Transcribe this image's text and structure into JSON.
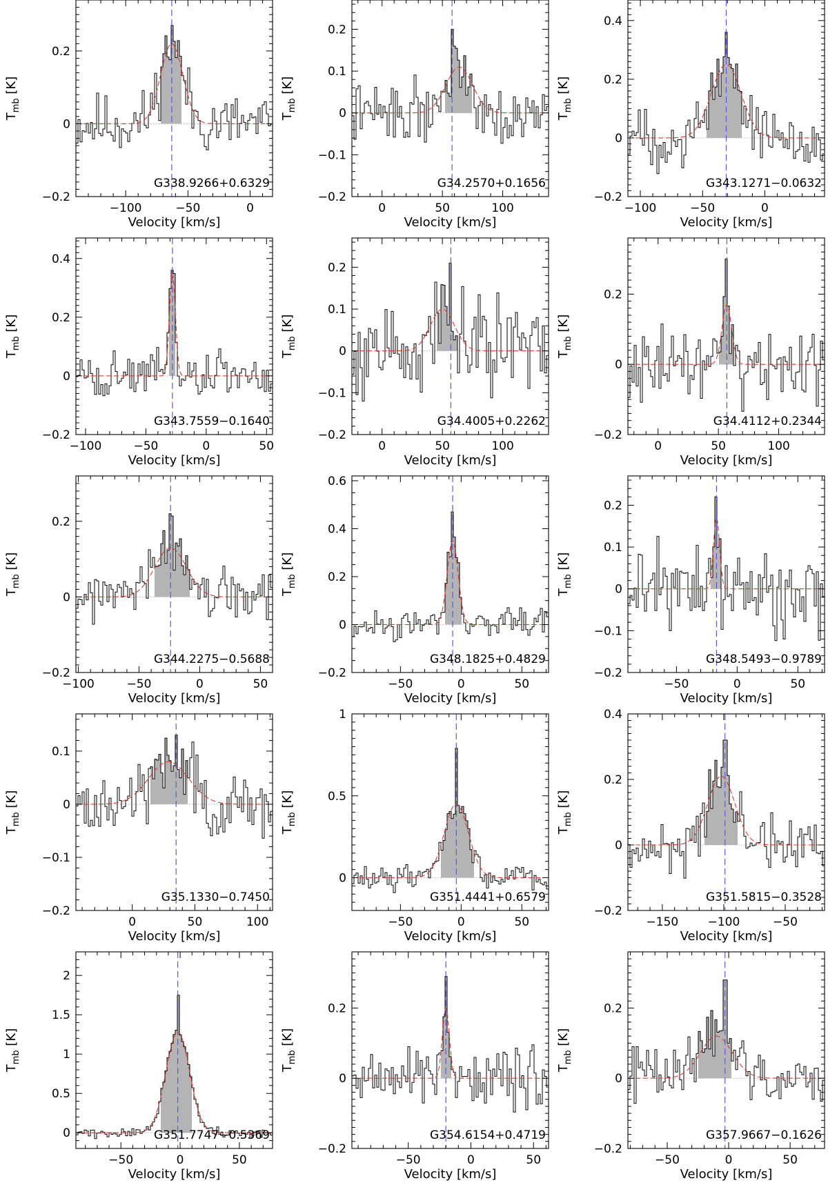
{
  "chart_data": [
    {
      "type": "line",
      "source": "G338.9266+0.6329",
      "xlim": [
        -140,
        18
      ],
      "ylim": [
        -0.2,
        0.34
      ],
      "xticks": [
        -100,
        -50,
        0
      ],
      "yticks": [
        -0.2,
        0,
        0.2
      ],
      "ytick_labels": [
        "−0.2",
        "0",
        "0.2"
      ],
      "xlabel": "Velocity [km/s]",
      "ylabel": "T_mb [K]",
      "vlsr": -63,
      "fit": {
        "peak": 0.22,
        "center": -63,
        "width": 9
      },
      "peak": 0.27,
      "fill_range": [
        -72,
        -56
      ],
      "noise": 0.06,
      "seed": 11
    },
    {
      "type": "line",
      "source": "G34.2570+0.1656",
      "xlim": [
        -25,
        138
      ],
      "ylim": [
        -0.2,
        0.27
      ],
      "xticks": [
        0,
        50,
        100
      ],
      "yticks": [
        -0.2,
        -0.1,
        0,
        0.1,
        0.2
      ],
      "ytick_labels": [
        "−0.2",
        "−0.1",
        "0",
        "0.1",
        "0.2"
      ],
      "xlabel": "Velocity [km/s]",
      "ylabel": "T_mb [K]",
      "vlsr": 58,
      "fit": {
        "peak": 0.11,
        "center": 64,
        "width": 11
      },
      "peak": 0.2,
      "fill_range": [
        53,
        75
      ],
      "noise": 0.05,
      "seed": 22
    },
    {
      "type": "line",
      "source": "G343.1271−0.0632",
      "xlim": [
        -110,
        48
      ],
      "ylim": [
        -0.2,
        0.47
      ],
      "xticks": [
        -100,
        -50,
        0
      ],
      "yticks": [
        -0.2,
        0,
        0.2,
        0.4
      ],
      "ytick_labels": [
        "−0.2",
        "0",
        "0.2",
        "0.4"
      ],
      "xlabel": "Velocity [km/s]",
      "ylabel": "T_mb [K]",
      "vlsr": -31,
      "fit": {
        "peak": 0.25,
        "center": -31,
        "width": 12
      },
      "peak": 0.36,
      "fill_range": [
        -47,
        -18
      ],
      "noise": 0.07,
      "seed": 33
    },
    {
      "type": "line",
      "source": "G343.7559−0.1640",
      "xlim": [
        -108,
        55
      ],
      "ylim": [
        -0.2,
        0.47
      ],
      "xticks": [
        -100,
        -50,
        0,
        50
      ],
      "yticks": [
        -0.2,
        0,
        0.2,
        0.4
      ],
      "ytick_labels": [
        "−0.2",
        "0",
        "0.2",
        "0.4"
      ],
      "xlabel": "Velocity [km/s]",
      "ylabel": "T_mb [K]",
      "vlsr": -28,
      "fit": {
        "peak": 0.35,
        "center": -28,
        "width": 2.5
      },
      "peak": 0.36,
      "fill_range": [
        -31,
        -25
      ],
      "noise": 0.06,
      "seed": 44
    },
    {
      "type": "line",
      "source": "G34.4005+0.2262",
      "xlim": [
        -25,
        138
      ],
      "ylim": [
        -0.2,
        0.27
      ],
      "xticks": [
        0,
        50,
        100
      ],
      "yticks": [
        -0.2,
        -0.1,
        0,
        0.1,
        0.2
      ],
      "ytick_labels": [
        "−0.2",
        "−0.1",
        "0",
        "0.1",
        "0.2"
      ],
      "xlabel": "Velocity [km/s]",
      "ylabel": "T_mb [K]",
      "vlsr": 57,
      "fit": {
        "peak": 0.1,
        "center": 50,
        "width": 10
      },
      "peak": 0.21,
      "fill_range": [
        45,
        65
      ],
      "noise": 0.08,
      "seed": 55
    },
    {
      "type": "line",
      "source": "G34.4112+0.2344",
      "xlim": [
        -25,
        138
      ],
      "ylim": [
        -0.2,
        0.36
      ],
      "xticks": [
        0,
        50,
        100
      ],
      "yticks": [
        -0.2,
        0,
        0.2
      ],
      "ytick_labels": [
        "−0.2",
        "0",
        "0.2"
      ],
      "xlabel": "Velocity [km/s]",
      "ylabel": "T_mb [K]",
      "vlsr": 57,
      "fit": {
        "peak": 0.17,
        "center": 57,
        "width": 4
      },
      "peak": 0.3,
      "fill_range": [
        51,
        64
      ],
      "noise": 0.07,
      "seed": 66
    },
    {
      "type": "line",
      "source": "G344.2275−0.5688",
      "xlim": [
        -102,
        60
      ],
      "ylim": [
        -0.2,
        0.32
      ],
      "xticks": [
        -100,
        -50,
        0,
        50
      ],
      "yticks": [
        -0.2,
        0,
        0.2
      ],
      "ytick_labels": [
        "−0.2",
        "0",
        "0.2"
      ],
      "xlabel": "Velocity [km/s]",
      "ylabel": "T_mb [K]",
      "vlsr": -24,
      "fit": {
        "peak": 0.13,
        "center": -24,
        "width": 13
      },
      "peak": 0.22,
      "fill_range": [
        -38,
        -8
      ],
      "noise": 0.05,
      "seed": 77
    },
    {
      "type": "line",
      "source": "G348.1825+0.4829",
      "xlim": [
        -90,
        72
      ],
      "ylim": [
        -0.2,
        0.62
      ],
      "xticks": [
        -50,
        0,
        50
      ],
      "yticks": [
        -0.2,
        0,
        0.2,
        0.4,
        0.6
      ],
      "ytick_labels": [
        "−0.2",
        "0",
        "0.2",
        "0.4",
        "0.6"
      ],
      "xlabel": "Velocity [km/s]",
      "ylabel": "T_mb [K]",
      "vlsr": -7,
      "fit": {
        "peak": 0.35,
        "center": -7,
        "width": 4.5
      },
      "peak": 0.47,
      "fill_range": [
        -14,
        0
      ],
      "noise": 0.04,
      "seed": 88
    },
    {
      "type": "line",
      "source": "G348.5493−0.9789",
      "xlim": [
        -90,
        72
      ],
      "ylim": [
        -0.2,
        0.27
      ],
      "xticks": [
        -50,
        0,
        50
      ],
      "yticks": [
        -0.2,
        -0.1,
        0,
        0.1,
        0.2
      ],
      "ytick_labels": [
        "−0.2",
        "−0.1",
        "0",
        "0.1",
        "0.2"
      ],
      "xlabel": "Velocity [km/s]",
      "ylabel": "T_mb [K]",
      "vlsr": -17,
      "fit": {
        "peak": 0.17,
        "center": -17,
        "width": 2.5
      },
      "peak": 0.22,
      "fill_range": [
        -21,
        -12
      ],
      "noise": 0.07,
      "seed": 99
    },
    {
      "type": "line",
      "source": "G35.1330−0.7450",
      "xlim": [
        -45,
        112
      ],
      "ylim": [
        -0.2,
        0.17
      ],
      "xticks": [
        0,
        50,
        100
      ],
      "yticks": [
        -0.2,
        -0.1,
        0,
        0.1
      ],
      "ytick_labels": [
        "−0.2",
        "−0.1",
        "0",
        "0.1"
      ],
      "xlabel": "Velocity [km/s]",
      "ylabel": "T_mb [K]",
      "vlsr": 35,
      "fit": {
        "peak": 0.08,
        "center": 29,
        "width": 16
      },
      "peak": 0.13,
      "fill_range": [
        15,
        45
      ],
      "noise": 0.045,
      "seed": 111
    },
    {
      "type": "line",
      "source": "G351.4441+0.6579",
      "xlim": [
        -90,
        72
      ],
      "ylim": [
        -0.2,
        1.0
      ],
      "xticks": [
        -50,
        0,
        50
      ],
      "yticks": [
        0,
        0.5,
        1
      ],
      "ytick_labels": [
        "0",
        "0.5",
        "1"
      ],
      "xlabel": "Velocity [km/s]",
      "ylabel": "T_mb [K]",
      "vlsr": -4,
      "fit": {
        "peak": 0.45,
        "center": -4,
        "width": 10
      },
      "peak": 0.79,
      "fill_range": [
        -16,
        10
      ],
      "noise": 0.05,
      "seed": 122
    },
    {
      "type": "line",
      "source": "G351.5815−0.3528",
      "xlim": [
        -178,
        -18
      ],
      "ylim": [
        -0.2,
        0.4
      ],
      "xticks": [
        -150,
        -100,
        -50
      ],
      "yticks": [
        -0.2,
        0,
        0.2,
        0.4
      ],
      "ytick_labels": [
        "−0.2",
        "0",
        "0.2",
        "0.4"
      ],
      "xlabel": "Velocity [km/s]",
      "ylabel": "T_mb [K]",
      "vlsr": -99,
      "fit": {
        "peak": 0.21,
        "center": -102,
        "width": 11
      },
      "peak": 0.32,
      "fill_range": [
        -116,
        -88
      ],
      "noise": 0.06,
      "seed": 133
    },
    {
      "type": "line",
      "source": "G351.7747−0.5369",
      "xlim": [
        -88,
        78
      ],
      "ylim": [
        -0.2,
        2.3
      ],
      "xticks": [
        -50,
        0,
        50
      ],
      "yticks": [
        0,
        0.5,
        1,
        1.5,
        2
      ],
      "ytick_labels": [
        "0",
        "0.5",
        "1",
        "1.5",
        "2"
      ],
      "xlabel": "Velocity [km/s]",
      "ylabel": "T_mb [K]",
      "vlsr": -2,
      "fit": {
        "peak": 1.28,
        "center": -2,
        "width": 10
      },
      "peak": 1.75,
      "fill_range": [
        -16,
        10
      ],
      "noise": 0.04,
      "seed": 144
    },
    {
      "type": "line",
      "source": "G354.6154+0.4719",
      "xlim": [
        -95,
        62
      ],
      "ylim": [
        -0.2,
        0.36
      ],
      "xticks": [
        -50,
        0,
        50
      ],
      "yticks": [
        -0.2,
        0,
        0.2
      ],
      "ytick_labels": [
        "−0.2",
        "0",
        "0.2"
      ],
      "xlabel": "Velocity [km/s]",
      "ylabel": "T_mb [K]",
      "vlsr": -20,
      "fit": {
        "peak": 0.2,
        "center": -20,
        "width": 2.8
      },
      "peak": 0.29,
      "fill_range": [
        -24,
        -16
      ],
      "noise": 0.06,
      "seed": 155
    },
    {
      "type": "line",
      "source": "G357.9667−0.1626",
      "xlim": [
        -82,
        78
      ],
      "ylim": [
        -0.2,
        0.36
      ],
      "xticks": [
        -50,
        0,
        50
      ],
      "yticks": [
        -0.2,
        0,
        0.2
      ],
      "ytick_labels": [
        "−0.2",
        "0",
        "0.2"
      ],
      "xlabel": "Velocity [km/s]",
      "ylabel": "T_mb [K]",
      "vlsr": -3,
      "fit": {
        "peak": 0.12,
        "center": -10,
        "width": 13
      },
      "peak": 0.28,
      "fill_range": [
        -25,
        3
      ],
      "noise": 0.06,
      "seed": 166
    }
  ]
}
